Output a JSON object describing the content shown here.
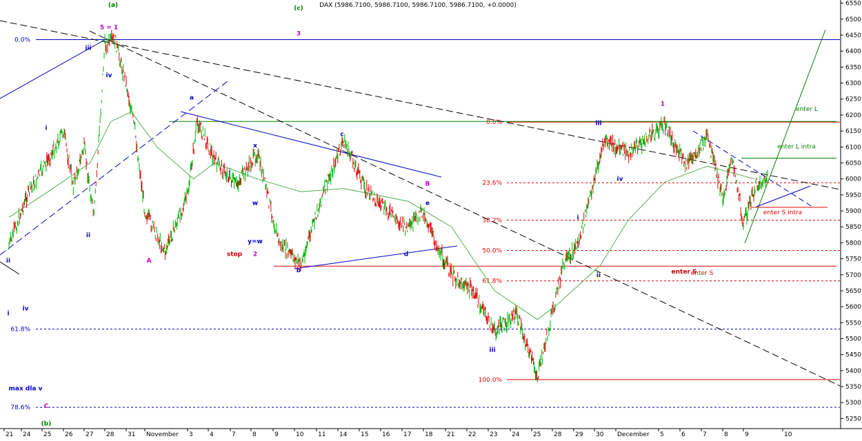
{
  "chart_data": {
    "type": "line",
    "title": "DAX (5986.7100, 5986.7100, 5986.7100, 5986.7100, +0.0000)",
    "xlabel": "",
    "ylabel": "",
    "ylim": [
      5225,
      6560
    ],
    "y_ticks": [
      5250,
      5300,
      5350,
      5400,
      5450,
      5500,
      5550,
      5600,
      5650,
      5700,
      5750,
      5800,
      5850,
      5900,
      5950,
      6000,
      6050,
      6100,
      6150,
      6200,
      6250,
      6300,
      6350,
      6400,
      6450,
      6500,
      6550
    ],
    "x_ticks": [
      "21",
      "24",
      "25",
      "26",
      "27",
      "28",
      "31",
      "November",
      "3",
      "4",
      "7",
      "8",
      "9",
      "10",
      "11",
      "14",
      "15",
      "16",
      "17",
      "18",
      "21",
      "22",
      "23",
      "24",
      "25",
      "28",
      "29",
      "30",
      "December",
      "5",
      "6",
      "7",
      "8",
      "9",
      "10"
    ],
    "price_series": {
      "name": "DAX",
      "key_points": [
        [
          "21",
          5790
        ],
        [
          "24",
          5950
        ],
        [
          "25",
          6060
        ],
        [
          "26",
          6150
        ],
        [
          "26",
          5980
        ],
        [
          "27",
          6100
        ],
        [
          "27",
          5880
        ],
        [
          "28",
          6420
        ],
        [
          "28",
          6435
        ],
        [
          "31",
          6300
        ],
        [
          "31",
          6150
        ],
        [
          "November",
          5900
        ],
        [
          "November",
          5770
        ],
        [
          "3",
          5950
        ],
        [
          "3",
          6180
        ],
        [
          "4",
          6060
        ],
        [
          "7",
          5980
        ],
        [
          "8",
          6080
        ],
        [
          "9",
          5800
        ],
        [
          "10",
          5730
        ],
        [
          "11",
          5950
        ],
        [
          "14",
          6120
        ],
        [
          "15",
          5970
        ],
        [
          "16",
          5900
        ],
        [
          "17",
          5840
        ],
        [
          "18",
          5900
        ],
        [
          "18",
          5810
        ],
        [
          "21",
          5700
        ],
        [
          "22",
          5650
        ],
        [
          "23",
          5520
        ],
        [
          "24",
          5580
        ],
        [
          "25",
          5380
        ],
        [
          "28",
          5580
        ],
        [
          "28",
          5720
        ],
        [
          "29",
          5810
        ],
        [
          "30",
          6000
        ],
        [
          "30",
          6120
        ],
        [
          "December",
          6080
        ],
        [
          "5",
          6170
        ],
        [
          "6",
          6040
        ],
        [
          "7",
          6130
        ],
        [
          "8",
          5940
        ],
        [
          "8",
          6070
        ],
        [
          "9",
          5860
        ],
        [
          "9",
          5980
        ],
        [
          "9",
          6000
        ]
      ]
    },
    "moving_average": {
      "key_points": [
        [
          "21",
          5880
        ],
        [
          "25",
          5960
        ],
        [
          "27",
          6050
        ],
        [
          "28",
          6180
        ],
        [
          "31",
          6210
        ],
        [
          "November",
          6100
        ],
        [
          "3",
          6000
        ],
        [
          "4",
          6050
        ],
        [
          "8",
          6000
        ],
        [
          "10",
          5960
        ],
        [
          "14",
          5970
        ],
        [
          "17",
          5930
        ],
        [
          "21",
          5850
        ],
        [
          "23",
          5650
        ],
        [
          "25",
          5560
        ],
        [
          "28",
          5610
        ],
        [
          "30",
          5730
        ],
        [
          "December",
          5870
        ],
        [
          "5",
          5990
        ],
        [
          "7",
          6040
        ],
        [
          "9",
          6000
        ]
      ]
    },
    "fib_levels_left": [
      {
        "label": "0.0%",
        "value": 6436
      },
      {
        "label": "61.8%",
        "value": 5530
      },
      {
        "label": "78.6%",
        "value": 5285
      }
    ],
    "fib_levels_right": [
      {
        "label": "0.0%",
        "value": 6178
      },
      {
        "label": "23.6%",
        "value": 5988
      },
      {
        "label": "38.2%",
        "value": 5871
      },
      {
        "label": "50.0%",
        "value": 5776
      },
      {
        "label": "61.8%",
        "value": 5681
      },
      {
        "label": "100.0%",
        "value": 5372
      }
    ],
    "horizontal_lines": [
      {
        "label": "enter L",
        "value": 6180
      },
      {
        "label": "enter L intra",
        "value": 6065
      },
      {
        "label": "enter S intra",
        "value": 5911
      },
      {
        "label": "enter S",
        "value": 5727
      }
    ],
    "wave_labels": [
      {
        "text": "(a)",
        "x": "28",
        "y": 6545,
        "color": "#008000"
      },
      {
        "text": "5 = 1",
        "x": "28",
        "y": 6475,
        "color": "#c000c0"
      },
      {
        "text": "iii",
        "x": "27",
        "y": 6410,
        "color": "#0000c0"
      },
      {
        "text": "iv",
        "x": "28",
        "y": 6325,
        "color": "#0000c0"
      },
      {
        "text": "i",
        "x": "25",
        "y": 6160,
        "color": "#0000c0"
      },
      {
        "text": "ii",
        "x": "27",
        "y": 5825,
        "color": "#0000c0"
      },
      {
        "text": "A",
        "x": "November",
        "y": 5745,
        "color": "#c000c0"
      },
      {
        "text": "a",
        "x": "3",
        "y": 6255,
        "color": "#0000c0"
      },
      {
        "text": "b",
        "x": "10",
        "y": 5715,
        "color": "#0000c0"
      },
      {
        "text": "c",
        "x": "14",
        "y": 6140,
        "color": "#0000c0"
      },
      {
        "text": "B",
        "x": "18",
        "y": 5985,
        "color": "#c000c0"
      },
      {
        "text": "e",
        "x": "18",
        "y": 5925,
        "color": "#0000c0"
      },
      {
        "text": "d",
        "x": "17",
        "y": 5765,
        "color": "#0000c0"
      },
      {
        "text": "ii",
        "x": "21",
        "y": 5745,
        "color": "#0000c0"
      },
      {
        "text": "i",
        "x": "21",
        "y": 5580,
        "color": "#0000c0"
      },
      {
        "text": "iii",
        "x": "23",
        "y": 5465,
        "color": "#0000c0"
      },
      {
        "text": "iv",
        "x": "24",
        "y": 5595,
        "color": "#0000c0"
      },
      {
        "text": "max dla v",
        "x": "24",
        "y": 5345,
        "color": "#0000c0"
      },
      {
        "text": "C",
        "x": "25",
        "y": 5290,
        "color": "#c000c0"
      },
      {
        "text": "(b)",
        "x": "25",
        "y": 5235,
        "color": "#008000"
      },
      {
        "text": "i",
        "x": "29",
        "y": 5880,
        "color": "#0000c0"
      },
      {
        "text": "ii",
        "x": "30",
        "y": 5700,
        "color": "#0000c0"
      },
      {
        "text": "iii",
        "x": "30",
        "y": 6175,
        "color": "#0000c0"
      },
      {
        "text": "iv",
        "x": "December",
        "y": 6000,
        "color": "#0000c0"
      },
      {
        "text": "1",
        "x": "5",
        "y": 6235,
        "color": "#c000c0"
      },
      {
        "text": "stop",
        "x": "7",
        "y": 5765,
        "color": "#c00000"
      },
      {
        "text": "enter S",
        "x": "6",
        "y": 5710,
        "color": "#c00000"
      },
      {
        "text": "x",
        "x": "8",
        "y": 6105,
        "color": "#0000c0"
      },
      {
        "text": "w",
        "x": "8",
        "y": 5925,
        "color": "#0000c0"
      },
      {
        "text": "y=w",
        "x": "8",
        "y": 5805,
        "color": "#0000c0"
      },
      {
        "text": "2",
        "x": "8",
        "y": 5765,
        "color": "#c000c0"
      },
      {
        "text": "(c)",
        "x": "10",
        "y": 6535,
        "color": "#008000"
      },
      {
        "text": "3",
        "x": "10",
        "y": 6455,
        "color": "#c000c0"
      }
    ],
    "grid": false,
    "colors": {
      "up": "#00b000",
      "down": "#e00000",
      "moving_average": "#50b050",
      "fib_left": "#0000c0",
      "fib_right": "#e00000",
      "trend_black": "#000000",
      "trend_blue": "#0000c0",
      "trend_green": "#008000"
    }
  }
}
